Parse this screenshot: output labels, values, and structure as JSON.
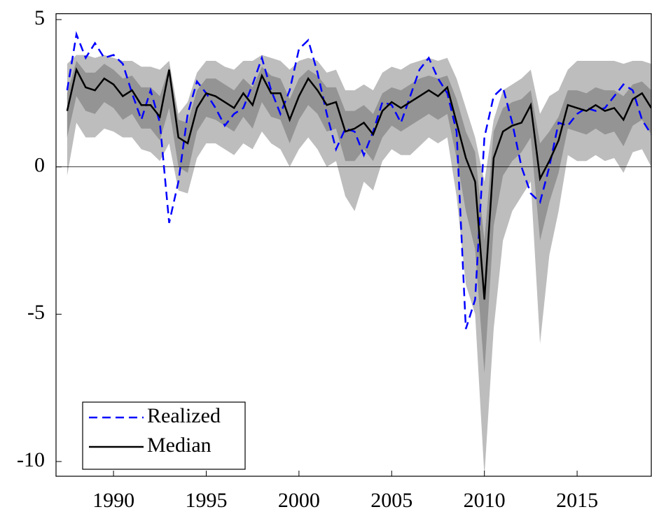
{
  "chart_data": {
    "type": "fan",
    "x": [
      1987.5,
      1988,
      1988.5,
      1989,
      1989.5,
      1990,
      1990.5,
      1991,
      1991.5,
      1992,
      1992.5,
      1993,
      1993.5,
      1994,
      1994.5,
      1995,
      1995.5,
      1996,
      1996.5,
      1997,
      1997.5,
      1998,
      1998.5,
      1999,
      1999.5,
      2000,
      2000.5,
      2001,
      2001.5,
      2002,
      2002.5,
      2003,
      2003.5,
      2004,
      2004.5,
      2005,
      2005.5,
      2006,
      2006.5,
      2007,
      2007.5,
      2008,
      2008.5,
      2009,
      2009.5,
      2010,
      2010.5,
      2011,
      2011.5,
      2012,
      2012.5,
      2013,
      2013.5,
      2014,
      2014.5,
      2015,
      2015.5,
      2016,
      2016.5,
      2017,
      2017.5,
      2018,
      2018.5,
      2019
    ],
    "bands": [
      {
        "color": "#bdbdbd",
        "upper": [
          3.5,
          3.8,
          3.8,
          3.7,
          3.8,
          3.7,
          3.6,
          3.6,
          3.4,
          3.4,
          3.3,
          3.6,
          1.8,
          2.2,
          3.2,
          3.6,
          3.6,
          3.4,
          3.3,
          3.6,
          3.6,
          3.8,
          3.7,
          3.6,
          3.3,
          3.6,
          3.7,
          3.6,
          3.2,
          3.3,
          2.6,
          2.6,
          2.8,
          2.6,
          3.2,
          3.4,
          3.3,
          3.5,
          3.6,
          3.7,
          3.6,
          3.7,
          3.0,
          2.0,
          1.0,
          -0.5,
          1.6,
          2.6,
          2.8,
          3.0,
          3.3,
          1.8,
          2.4,
          2.6,
          3.3,
          3.6,
          3.6,
          3.6,
          3.6,
          3.6,
          3.5,
          3.6,
          3.6,
          3.5
        ],
        "lower": [
          -0.3,
          1.5,
          1.0,
          1.0,
          1.3,
          1.2,
          1.0,
          1.0,
          0.6,
          0.5,
          0.2,
          0.8,
          -0.8,
          -0.9,
          0.3,
          0.8,
          0.8,
          0.6,
          0.4,
          0.8,
          0.6,
          1.2,
          0.8,
          0.6,
          0.0,
          0.6,
          1.0,
          0.6,
          0.0,
          0.2,
          -1.0,
          -1.5,
          -0.5,
          -0.8,
          0.2,
          0.6,
          0.4,
          0.4,
          0.7,
          1.0,
          0.8,
          1.0,
          -1.0,
          -4.0,
          -5.0,
          -10.5,
          -5.5,
          -2.5,
          -1.5,
          -1.0,
          -0.5,
          -6.0,
          -3.0,
          -1.5,
          0.4,
          0.2,
          0.2,
          0.4,
          0.2,
          0.3,
          -0.2,
          0.5,
          0.6,
          0.0
        ]
      },
      {
        "color": "#949494",
        "upper": [
          2.5,
          3.6,
          3.2,
          3.2,
          3.5,
          3.3,
          3.0,
          3.1,
          2.7,
          2.7,
          2.4,
          3.4,
          1.6,
          1.5,
          2.6,
          3.0,
          3.0,
          2.8,
          2.6,
          3.0,
          2.7,
          3.4,
          3.1,
          3.0,
          2.3,
          3.0,
          3.3,
          3.1,
          2.7,
          2.7,
          1.9,
          1.9,
          2.1,
          1.8,
          2.5,
          2.7,
          2.6,
          2.8,
          3.0,
          3.1,
          3.0,
          3.1,
          2.3,
          1.2,
          0.5,
          -2.5,
          1.2,
          2.0,
          2.2,
          2.3,
          2.6,
          0.8,
          1.2,
          1.7,
          2.6,
          2.6,
          2.5,
          2.7,
          2.6,
          2.6,
          2.4,
          2.8,
          2.9,
          2.6
        ],
        "lower": [
          1.0,
          2.4,
          1.9,
          1.8,
          2.2,
          2.0,
          1.6,
          1.8,
          1.3,
          1.3,
          0.9,
          2.0,
          0.0,
          -0.2,
          1.2,
          1.7,
          1.6,
          1.4,
          1.2,
          1.7,
          1.3,
          2.2,
          1.7,
          1.6,
          0.8,
          1.6,
          2.1,
          1.8,
          1.2,
          1.3,
          0.2,
          0.2,
          0.6,
          0.2,
          1.0,
          1.4,
          1.2,
          1.4,
          1.6,
          1.8,
          1.6,
          1.8,
          0.3,
          -1.5,
          -2.8,
          -7.0,
          -2.0,
          -0.3,
          0.2,
          0.5,
          1.0,
          -2.5,
          -1.2,
          -0.2,
          1.3,
          1.2,
          1.1,
          1.3,
          1.1,
          1.2,
          0.7,
          1.4,
          1.6,
          1.1
        ]
      }
    ],
    "series": [
      {
        "name": "Realized",
        "color": "#0000ff",
        "dashed": true,
        "values": [
          2.6,
          4.5,
          3.7,
          4.2,
          3.7,
          3.8,
          3.5,
          2.5,
          1.6,
          2.6,
          1.5,
          -1.9,
          -0.5,
          1.8,
          2.9,
          2.5,
          2.0,
          1.4,
          1.8,
          2.0,
          2.8,
          3.7,
          2.6,
          1.8,
          2.6,
          4.0,
          4.3,
          3.2,
          1.8,
          0.6,
          1.3,
          1.2,
          0.4,
          1.2,
          2.2,
          2.1,
          1.5,
          2.4,
          3.3,
          3.7,
          3.0,
          2.5,
          1.2,
          -5.5,
          -4.5,
          1.0,
          2.4,
          2.7,
          1.5,
          0.0,
          -0.9,
          -1.2,
          0.0,
          1.5,
          1.4,
          1.8,
          2.0,
          1.9,
          2.0,
          2.4,
          2.8,
          2.6,
          1.6,
          1.1
        ]
      },
      {
        "name": "Median",
        "color": "#000000",
        "dashed": false,
        "values": [
          1.9,
          3.3,
          2.7,
          2.6,
          3.0,
          2.8,
          2.4,
          2.6,
          2.1,
          2.1,
          1.7,
          3.3,
          1.0,
          0.8,
          2.0,
          2.5,
          2.4,
          2.2,
          2.0,
          2.5,
          2.1,
          3.1,
          2.5,
          2.5,
          1.6,
          2.4,
          3.0,
          2.6,
          2.1,
          2.2,
          1.2,
          1.3,
          1.5,
          1.1,
          1.9,
          2.2,
          2.0,
          2.2,
          2.4,
          2.6,
          2.4,
          2.7,
          1.5,
          0.3,
          -0.5,
          -4.5,
          0.3,
          1.2,
          1.4,
          1.5,
          2.1,
          -0.4,
          0.2,
          0.9,
          2.1,
          2.0,
          1.9,
          2.1,
          1.9,
          2.0,
          1.6,
          2.3,
          2.5,
          2.0
        ]
      }
    ],
    "xlim": [
      1986.9,
      2019.0
    ],
    "ylim": [
      -10.5,
      5.2
    ],
    "xticks": [
      1990,
      1995,
      2000,
      2005,
      2010,
      2015
    ],
    "yticks": [
      -10,
      -5,
      0,
      5
    ],
    "zero_line": true,
    "legend": "lower left"
  }
}
